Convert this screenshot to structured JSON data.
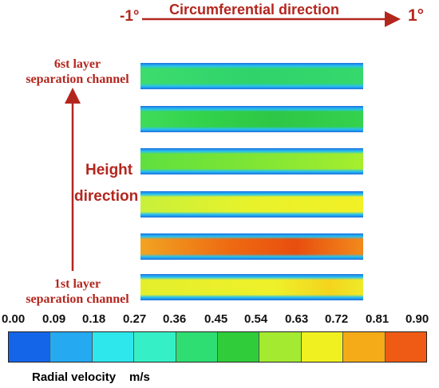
{
  "circumferential": {
    "title": "Circumferential direction",
    "start": "-1°",
    "end": "1°"
  },
  "labels": {
    "top_layer": [
      "6st layer",
      "separation channel"
    ],
    "bottom_layer": [
      "1st layer",
      "separation channel"
    ],
    "height": [
      "Height",
      "direction"
    ]
  },
  "layers": [
    {
      "layer": 6,
      "gradient": "linear-gradient(90deg,#3ddc6e 0%,#2fd36a 50%,#35d86c 100%)"
    },
    {
      "layer": 5,
      "gradient": "linear-gradient(90deg,#3fdc5a 0%,#32d24a 30%,#2ec646 60%,#35d24e 100%)"
    },
    {
      "layer": 4,
      "gradient": "linear-gradient(90deg,#5fe03e 0%,#7fe534 50%,#a6ee2e 100%)"
    },
    {
      "layer": 3,
      "gradient": "linear-gradient(90deg,#c8f03a 0%,#e8f22a 50%,#f2f026 100%)"
    },
    {
      "layer": 2,
      "gradient": "linear-gradient(90deg,#f1a422 0%,#ee6a12 40%,#e84e0e 70%,#f28a1c 100%)"
    },
    {
      "layer": 1,
      "gradient": "linear-gradient(90deg,#e4ef2c 0%,#eef02a 60%,#f4d41e 85%,#eeea28 100%)"
    }
  ],
  "colorbar": {
    "ticks": [
      "0.00",
      "0.09",
      "0.18",
      "0.27",
      "0.36",
      "0.45",
      "0.54",
      "0.63",
      "0.72",
      "0.81",
      "0.90"
    ],
    "colors": [
      "#1565e8",
      "#25a9f1",
      "#2ee7ec",
      "#35f0c6",
      "#2fde73",
      "#31cc3a",
      "#a4ea30",
      "#f0f020",
      "#f4ab17",
      "#ef5a14"
    ],
    "title": "Radial velocity",
    "unit": "m/s"
  },
  "colors": {
    "accent_red": "#b3261e"
  }
}
